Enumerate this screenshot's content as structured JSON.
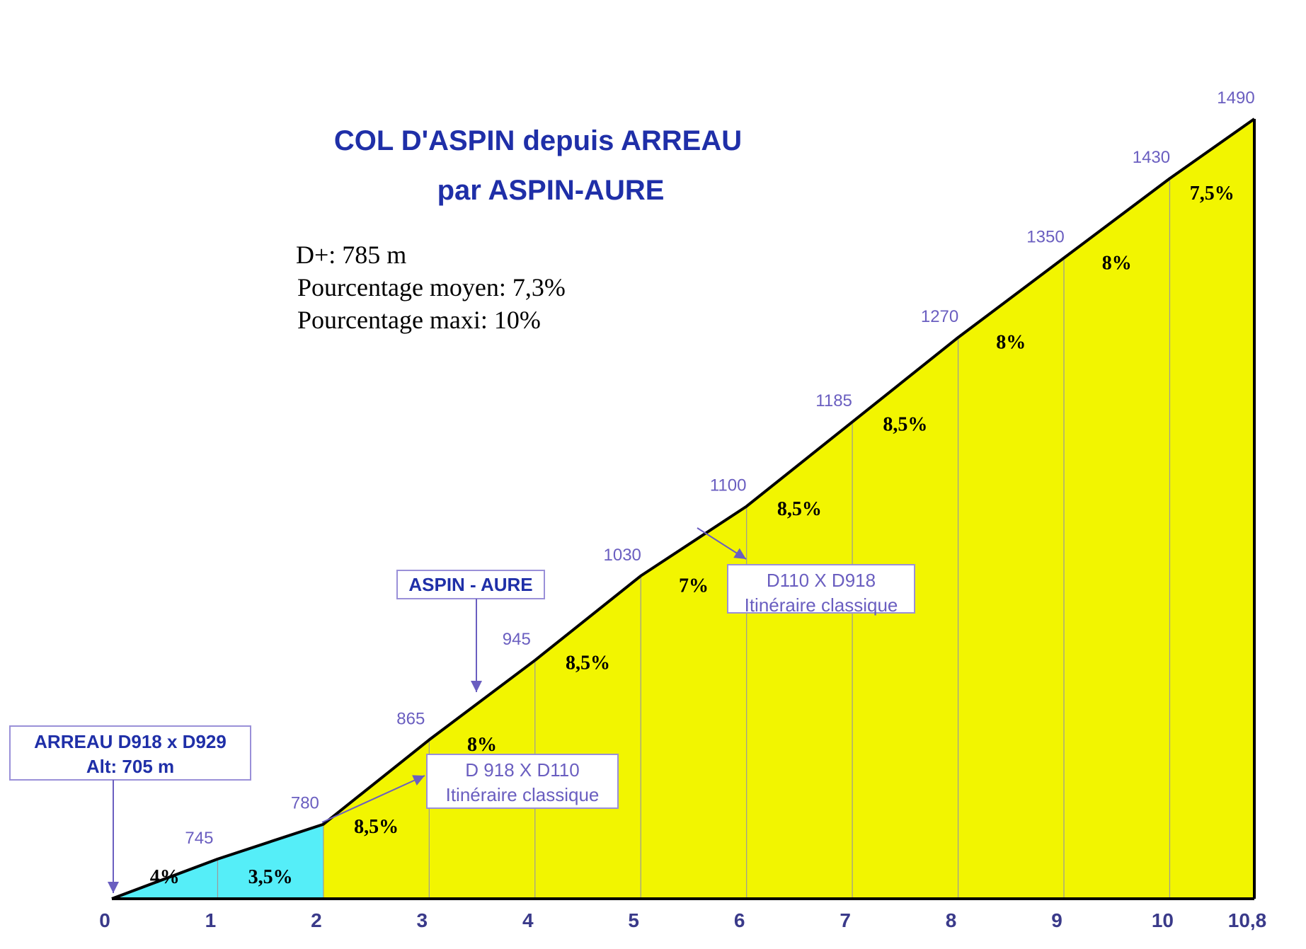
{
  "title_line1": "COL D'ASPIN depuis ARREAU",
  "title_line2": "par ASPIN-AURE",
  "stats": {
    "elevation_gain": "D+: 785 m",
    "avg_grade": "Pourcentage moyen: 7,3%",
    "max_grade": "Pourcentage maxi: 10%"
  },
  "colors": {
    "title": "#1f2fa8",
    "segment_low": "#55eef8",
    "segment_high": "#f2f500",
    "profile_line": "#000000",
    "annotation": "#6a5ec0"
  },
  "annotations": [
    {
      "line1": "ARREAU  D918 x D929",
      "line2": "Alt: 705 m",
      "style": "bold",
      "target_km": 0
    },
    {
      "line1": "ASPIN - AURE",
      "line2": "",
      "style": "bold",
      "target_km": 3.5
    },
    {
      "line1": "D 918 X D110",
      "line2": "Itinéraire classique",
      "style": "light",
      "target_km": 2
    },
    {
      "line1": "D110 X D918",
      "line2": "Itinéraire classique",
      "style": "light",
      "target_km": 5.6
    }
  ],
  "chart_data": {
    "type": "area",
    "title": "COL D'ASPIN depuis ARREAU par ASPIN-AURE",
    "xlabel": "",
    "ylabel": "",
    "x_tick_labels": [
      "0",
      "1",
      "2",
      "3",
      "4",
      "5",
      "6",
      "7",
      "8",
      "9",
      "10",
      "10,8"
    ],
    "points": [
      {
        "km": 0,
        "alt": 705,
        "alt_label": ""
      },
      {
        "km": 1,
        "alt": 745,
        "alt_label": "745"
      },
      {
        "km": 2,
        "alt": 780,
        "alt_label": "780"
      },
      {
        "km": 3,
        "alt": 865,
        "alt_label": "865"
      },
      {
        "km": 4,
        "alt": 945,
        "alt_label": "945"
      },
      {
        "km": 5,
        "alt": 1030,
        "alt_label": "1030"
      },
      {
        "km": 6,
        "alt": 1100,
        "alt_label": "1100"
      },
      {
        "km": 7,
        "alt": 1185,
        "alt_label": "1185"
      },
      {
        "km": 8,
        "alt": 1270,
        "alt_label": "1270"
      },
      {
        "km": 9,
        "alt": 1350,
        "alt_label": "1350"
      },
      {
        "km": 10,
        "alt": 1430,
        "alt_label": "1430"
      },
      {
        "km": 10.8,
        "alt": 1490,
        "alt_label": "1490"
      }
    ],
    "segments": [
      {
        "from_km": 0,
        "to_km": 1,
        "grade": "4%",
        "color": "#55eef8"
      },
      {
        "from_km": 1,
        "to_km": 2,
        "grade": "3,5%",
        "color": "#55eef8"
      },
      {
        "from_km": 2,
        "to_km": 3,
        "grade": "8,5%",
        "color": "#f2f500"
      },
      {
        "from_km": 3,
        "to_km": 4,
        "grade": "8%",
        "color": "#f2f500"
      },
      {
        "from_km": 4,
        "to_km": 5,
        "grade": "8,5%",
        "color": "#f2f500"
      },
      {
        "from_km": 5,
        "to_km": 6,
        "grade": "7%",
        "color": "#f2f500"
      },
      {
        "from_km": 6,
        "to_km": 7,
        "grade": "8,5%",
        "color": "#f2f500"
      },
      {
        "from_km": 7,
        "to_km": 8,
        "grade": "8,5%",
        "color": "#f2f500"
      },
      {
        "from_km": 8,
        "to_km": 9,
        "grade": "8%",
        "color": "#f2f500"
      },
      {
        "from_km": 9,
        "to_km": 10,
        "grade": "8%",
        "color": "#f2f500"
      },
      {
        "from_km": 10,
        "to_km": 10.8,
        "grade": "7,5%",
        "color": "#f2f500"
      }
    ],
    "xlim": [
      0,
      10.8
    ],
    "ylim": [
      705,
      1490
    ],
    "grid": false
  }
}
